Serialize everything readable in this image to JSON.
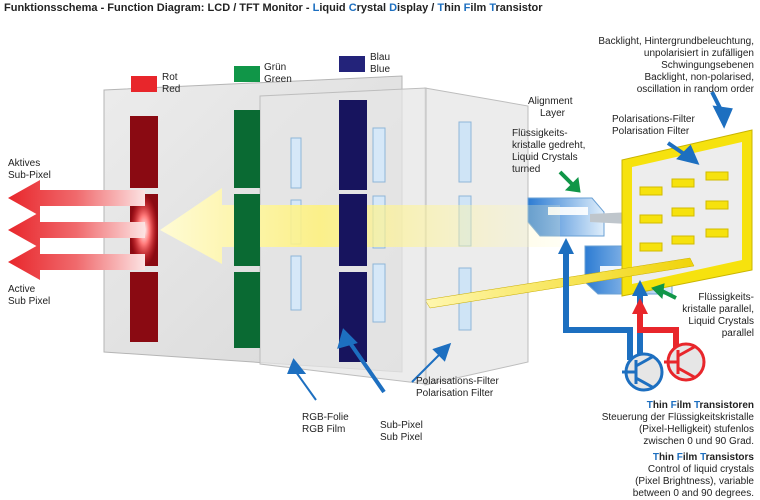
{
  "title": {
    "main": "Funktionsschema - Function Diagram:",
    "lcd": "LCD / TFT Monitor -",
    "l": "L",
    "iquid": "iquid ",
    "c": "C",
    "rystal": "rystal ",
    "d": "D",
    "isplay": "isplay /",
    "t": "T",
    "hin": "hin ",
    "f": "F",
    "ilm": "ilm ",
    "tt": "T",
    "ransistor": "ransistor"
  },
  "labels": {
    "rot": "Rot",
    "red": "Red",
    "gruen": "Grün",
    "green": "Green",
    "blau": "Blau",
    "blue": "Blue",
    "aktives": "Aktives",
    "subpixel_de": "Sub-Pixel",
    "active": "Active",
    "subpixel_en": "Sub Pixel",
    "alignment1": "Alignment",
    "alignment2": "Layer",
    "fk_gedreht": [
      "Flüssigkeits-",
      "kristalle gedreht,",
      "Liquid Crystals",
      "turned"
    ],
    "backlight": [
      "Backlight, Hintergrundbeleuchtung,",
      "unpolarisiert in zufälligen",
      "Schwingungsebenen",
      "Backlight, non-polarised,",
      "oscillation in random order"
    ],
    "polfilter_right": [
      "Polarisations-Filter",
      "Polarisation Filter"
    ],
    "fk_parallel": [
      "Flüssigkeits-",
      "kristalle parallel,",
      "Liquid Crystals",
      "parallel"
    ],
    "polfilter_bottom": [
      "Polarisations-Filter",
      "Polarisation Filter"
    ],
    "rgb_folie": [
      "RGB-Folie",
      "RGB Film"
    ],
    "sub_pixel": [
      "Sub-Pixel",
      "Sub Pixel"
    ],
    "tft_de": [
      "Steuerung der Flüssigkeitskristalle",
      "(Pixel-Helligkeit) stufenlos",
      "zwischen 0 und 90 Grad."
    ],
    "tft_en": [
      "Control of liquid crystals",
      "(Pixel Brightness), variable",
      "between 0 and 90 degrees."
    ],
    "tft_head_de": {
      "t": "T",
      "hin": "hin ",
      "f": "F",
      "ilm": "ilm ",
      "tt": "T",
      "rest": "ransistoren"
    },
    "tft_head_en": {
      "t": "T",
      "hin": "hin ",
      "f": "F",
      "ilm": "ilm ",
      "tt": "T",
      "rest": "ransistors"
    }
  },
  "colors": {
    "red": "#e8262b",
    "darkred": "#8a0a12",
    "green": "#109648",
    "darkgreen": "#0a6a33",
    "blue": "#23237a",
    "darkblue": "#17145e",
    "accent_blue": "#1d6fc0",
    "yellow": "#f6e20e",
    "arrow_red": "#e8262b"
  },
  "icons": [
    "transistor-icon-blue",
    "transistor-icon-red"
  ]
}
